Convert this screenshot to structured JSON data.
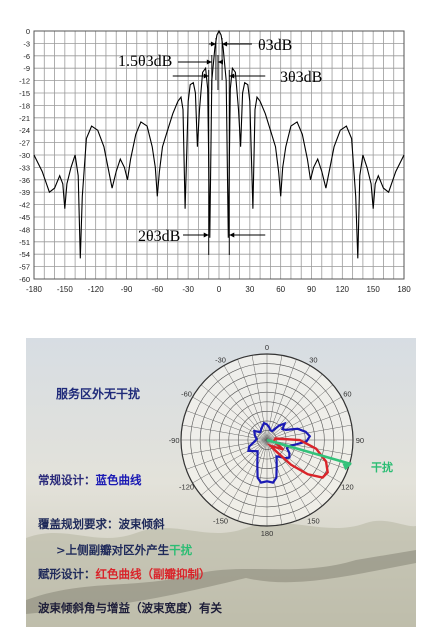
{
  "chart_data": [
    {
      "type": "line",
      "title": "",
      "xlabel": "",
      "ylabel": "",
      "xlim": [
        -180,
        180
      ],
      "ylim": [
        -60,
        0
      ],
      "x_ticks": [
        "-180",
        "-150",
        "-120",
        "-90",
        "-60",
        "-30",
        "0",
        "30",
        "60",
        "90",
        "120",
        "150",
        "180"
      ],
      "y_ticks": [
        "0",
        "-3",
        "-6",
        "-9",
        "-12",
        "-15",
        "-18",
        "-21",
        "-24",
        "-27",
        "-30",
        "-33",
        "-36",
        "-39",
        "-42",
        "-45",
        "-48",
        "-51",
        "-54",
        "-57",
        "-60"
      ],
      "grid": true,
      "series": [
        {
          "color": "#000000",
          "points": [
            [
              -180,
              -30
            ],
            [
              -172,
              -34
            ],
            [
              -165,
              -39
            ],
            [
              -160,
              -38
            ],
            [
              -155,
              -35
            ],
            [
              -152,
              -37
            ],
            [
              -150,
              -43
            ],
            [
              -148,
              -37
            ],
            [
              -144,
              -33
            ],
            [
              -140,
              -30
            ],
            [
              -137,
              -35
            ],
            [
              -135,
              -55
            ],
            [
              -133,
              -40
            ],
            [
              -129,
              -26
            ],
            [
              -124,
              -23
            ],
            [
              -118,
              -24
            ],
            [
              -112,
              -28
            ],
            [
              -108,
              -33
            ],
            [
              -104,
              -38
            ],
            [
              -100,
              -34
            ],
            [
              -96,
              -31
            ],
            [
              -92,
              -33
            ],
            [
              -89,
              -36
            ],
            [
              -86,
              -31
            ],
            [
              -81,
              -25
            ],
            [
              -76,
              -22
            ],
            [
              -70,
              -23
            ],
            [
              -65,
              -28
            ],
            [
              -62,
              -33
            ],
            [
              -60,
              -40
            ],
            [
              -58,
              -34
            ],
            [
              -55,
              -28
            ],
            [
              -50,
              -24
            ],
            [
              -45,
              -20
            ],
            [
              -40,
              -17
            ],
            [
              -37,
              -16
            ],
            [
              -35,
              -19
            ],
            [
              -33,
              -43
            ],
            [
              -30,
              -17
            ],
            [
              -28,
              -13
            ],
            [
              -25,
              -12.5
            ],
            [
              -23,
              -15
            ],
            [
              -21,
              -28
            ],
            [
              -19,
              -19
            ],
            [
              -16,
              -10
            ],
            [
              -13,
              -9
            ],
            [
              -11,
              -14
            ],
            [
              -9,
              -50
            ],
            [
              -7,
              -12
            ],
            [
              -4,
              -4
            ],
            [
              -2,
              -1
            ],
            [
              0,
              0
            ],
            [
              2,
              -1
            ],
            [
              4,
              -4
            ],
            [
              7,
              -12
            ],
            [
              9,
              -50
            ],
            [
              11,
              -14
            ],
            [
              13,
              -9
            ],
            [
              16,
              -10
            ],
            [
              19,
              -19
            ],
            [
              21,
              -28
            ],
            [
              23,
              -15
            ],
            [
              25,
              -12.5
            ],
            [
              28,
              -13
            ],
            [
              30,
              -17
            ],
            [
              33,
              -43
            ],
            [
              35,
              -19
            ],
            [
              37,
              -16
            ],
            [
              40,
              -17
            ],
            [
              45,
              -20
            ],
            [
              50,
              -24
            ],
            [
              55,
              -28
            ],
            [
              58,
              -34
            ],
            [
              60,
              -40
            ],
            [
              62,
              -33
            ],
            [
              65,
              -28
            ],
            [
              70,
              -23
            ],
            [
              76,
              -22
            ],
            [
              81,
              -25
            ],
            [
              86,
              -31
            ],
            [
              89,
              -36
            ],
            [
              92,
              -33
            ],
            [
              96,
              -31
            ],
            [
              100,
              -34
            ],
            [
              104,
              -38
            ],
            [
              108,
              -33
            ],
            [
              112,
              -28
            ],
            [
              118,
              -24
            ],
            [
              124,
              -23
            ],
            [
              129,
              -26
            ],
            [
              133,
              -40
            ],
            [
              135,
              -55
            ],
            [
              137,
              -35
            ],
            [
              140,
              -30
            ],
            [
              144,
              -33
            ],
            [
              148,
              -37
            ],
            [
              150,
              -43
            ],
            [
              152,
              -37
            ],
            [
              155,
              -35
            ],
            [
              160,
              -38
            ],
            [
              165,
              -39
            ],
            [
              172,
              -34
            ],
            [
              180,
              -30
            ]
          ]
        }
      ],
      "annotations": {
        "beamwidth": "θ3dB",
        "beam_1_5": "1.5θ3dB",
        "beam_3": "3θ3dB",
        "beam_2": "2θ3dB"
      }
    },
    {
      "type": "polar",
      "angle_labels": [
        "0",
        "30",
        "60",
        "90",
        "120",
        "150",
        "180",
        "-150",
        "-120",
        "-90",
        "-60",
        "-30"
      ],
      "radial_rings": 9,
      "series": [
        {
          "name": "蓝色曲线",
          "color": "#1a1ab4",
          "points": [
            [
              0,
              0.18
            ],
            [
              10,
              0.15
            ],
            [
              20,
              0.12
            ],
            [
              30,
              0.12
            ],
            [
              40,
              0.22
            ],
            [
              47,
              0.28
            ],
            [
              55,
              0.22
            ],
            [
              62,
              0.25
            ],
            [
              70,
              0.38
            ],
            [
              78,
              0.46
            ],
            [
              85,
              0.5
            ],
            [
              92,
              0.46
            ],
            [
              98,
              0.35
            ],
            [
              105,
              0.27
            ],
            [
              112,
              0.25
            ],
            [
              120,
              0.3
            ],
            [
              128,
              0.33
            ],
            [
              135,
              0.3
            ],
            [
              142,
              0.25
            ],
            [
              150,
              0.22
            ],
            [
              158,
              0.3
            ],
            [
              166,
              0.45
            ],
            [
              172,
              0.5
            ],
            [
              180,
              0.48
            ],
            [
              188,
              0.5
            ],
            [
              194,
              0.45
            ],
            [
              202,
              0.3
            ],
            [
              210,
              0.22
            ],
            [
              220,
              0.17
            ],
            [
              230,
              0.2
            ],
            [
              240,
              0.25
            ],
            [
              250,
              0.22
            ],
            [
              262,
              0.15
            ],
            [
              275,
              0.12
            ],
            [
              290,
              0.15
            ],
            [
              305,
              0.18
            ],
            [
              320,
              0.12
            ],
            [
              335,
              0.15
            ],
            [
              350,
              0.2
            ],
            [
              360,
              0.18
            ]
          ]
        },
        {
          "name": "红色曲线",
          "color": "#d9242a",
          "points": [
            [
              80,
              0.1
            ],
            [
              90,
              0.38
            ],
            [
              100,
              0.58
            ],
            [
              110,
              0.73
            ],
            [
              118,
              0.8
            ],
            [
              124,
              0.78
            ],
            [
              130,
              0.62
            ],
            [
              136,
              0.4
            ],
            [
              142,
              0.15
            ],
            [
              148,
              0.08
            ],
            [
              120,
              0.22
            ],
            [
              100,
              0.08
            ],
            [
              80,
              0.1
            ]
          ]
        },
        {
          "name": "干扰",
          "color": "#33c27a",
          "line": [
            [
              0,
              0
            ],
            [
              106,
              1.02
            ]
          ]
        }
      ],
      "labels": {
        "no_interference": "服务区外无干扰",
        "conventional": "常规设计：",
        "conventional_curve": "蓝色曲线",
        "coverage_req": "覆盖规划要求：波束倾斜",
        "upper_sidelobe": ">上侧副瓣对区外产生",
        "interference_tag": "干扰",
        "shaping": "赋形设计：",
        "shaping_curve": "红色曲线（副瓣抑制）",
        "interference_label": "干扰",
        "footer": "波束倾斜角与增益（波束宽度）有关"
      }
    }
  ]
}
